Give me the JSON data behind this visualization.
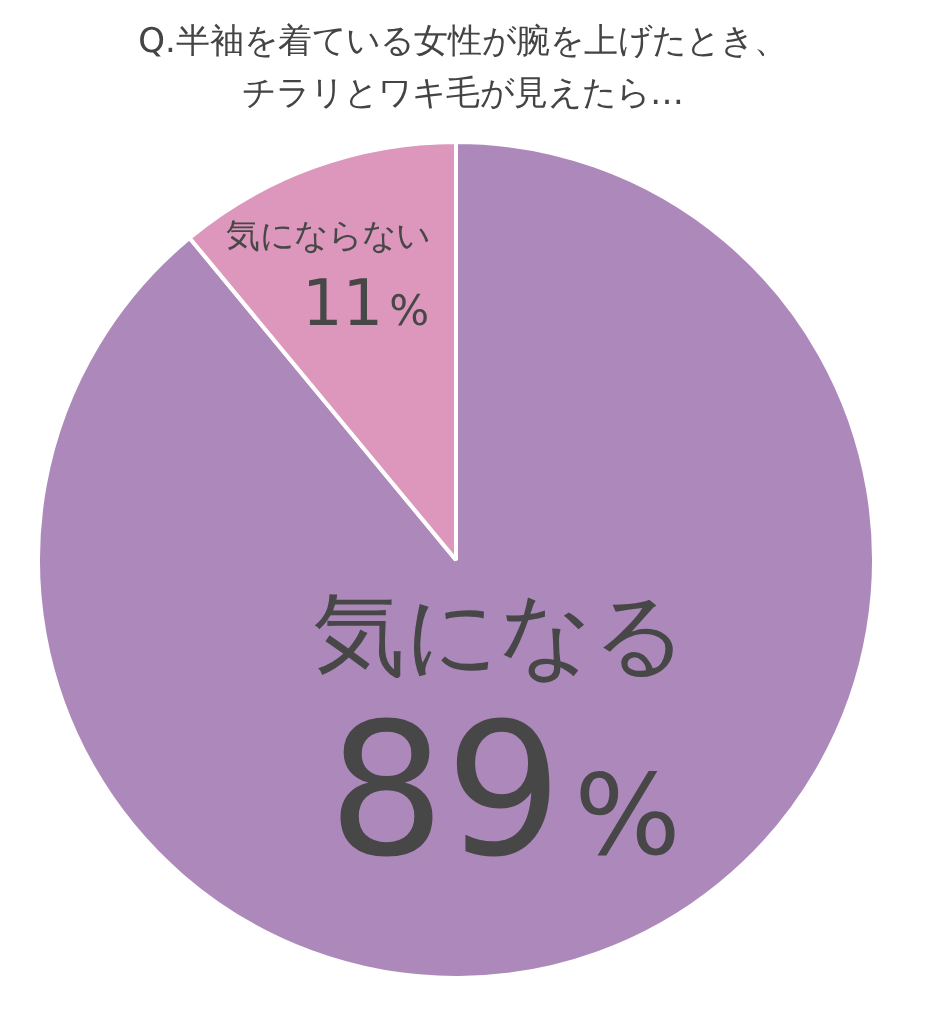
{
  "chart_data": {
    "type": "pie",
    "title": "Q.半袖を着ている女性が腕を上げたとき、チラリとワキ毛が見えたら…",
    "categories": [
      "気になる",
      "気にならない"
    ],
    "values": [
      89,
      11
    ],
    "colors": [
      "#ad89bb",
      "#dd97bc"
    ],
    "value_labels": [
      "89%",
      "11%"
    ]
  }
}
